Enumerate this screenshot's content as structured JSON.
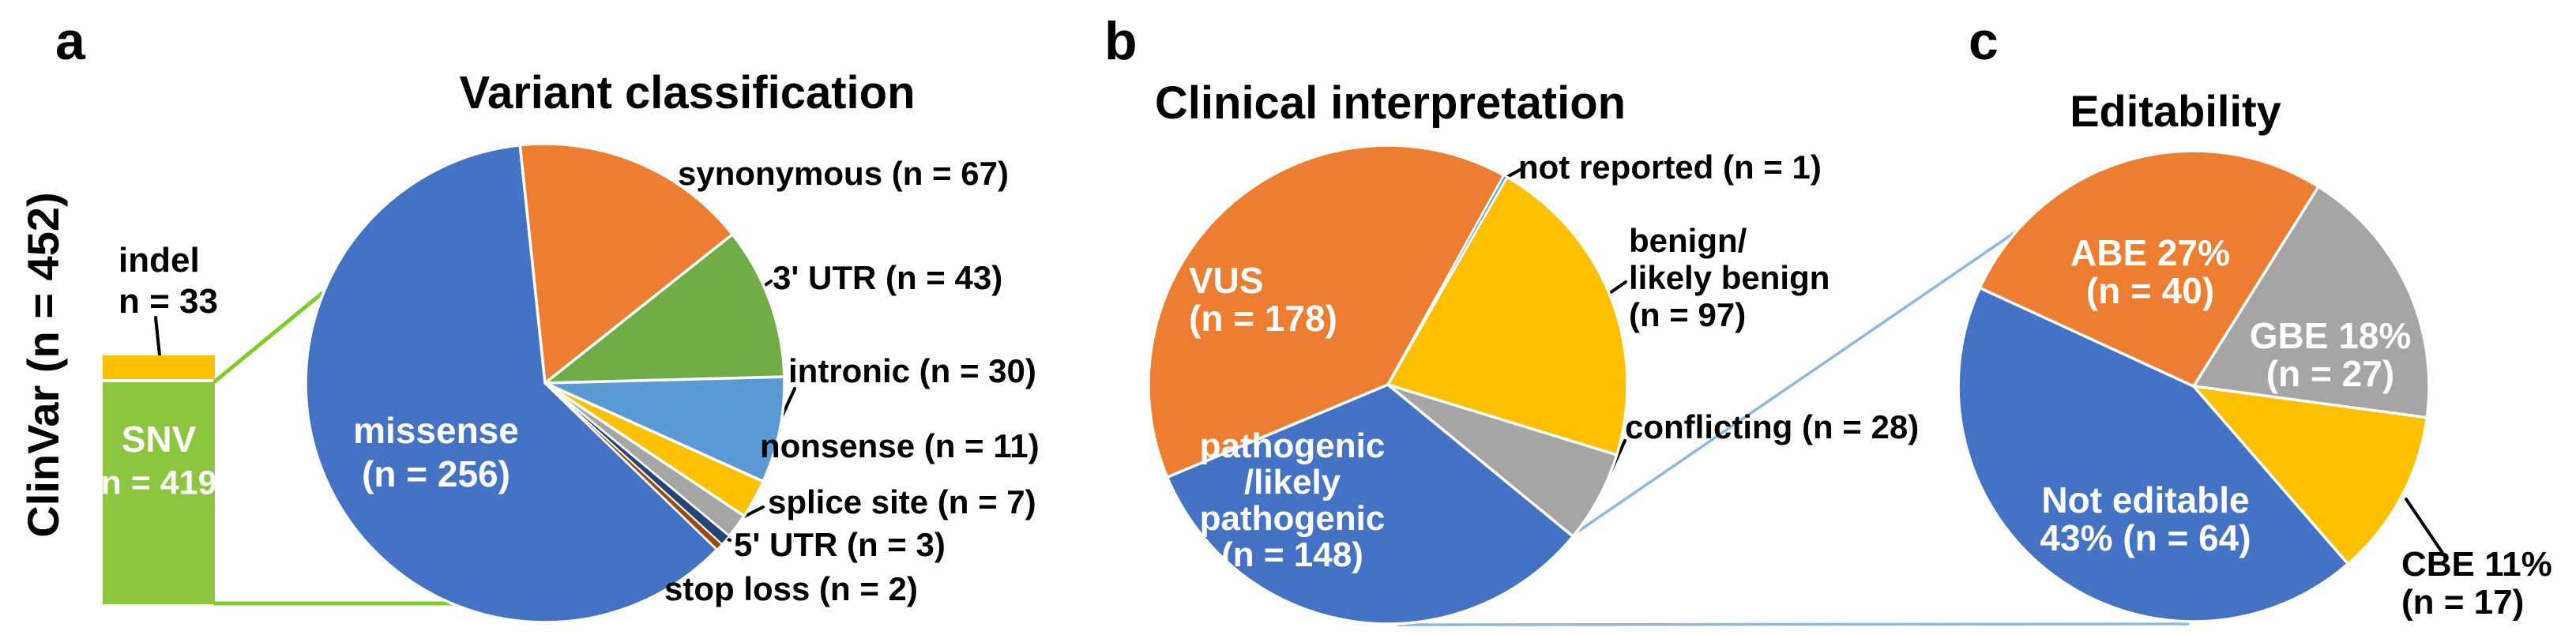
{
  "colors": {
    "blue": "#4472C4",
    "orange": "#ED7D31",
    "gray": "#A5A5A5",
    "yellow": "#FFC000",
    "light_blue": "#5B9BD5",
    "green": "#70AD47",
    "dark_blue": "#264478",
    "dark_orange": "#9E480E",
    "bar_green": "#8CC63E",
    "connector_green": "#80CC28",
    "connector_blue": "#8FB8E0",
    "text_black": "#000000",
    "text_white": "#FFFFFF",
    "background": "#FFFFFF"
  },
  "panels": {
    "a": {
      "letter": "a",
      "side_label": "ClinVar (n = 452)"
    },
    "b": {
      "letter": "b"
    },
    "c": {
      "letter": "c"
    }
  },
  "chart_data": [
    {
      "type": "bar",
      "stacked": true,
      "title": "ClinVar (n = 452)",
      "total": 452,
      "segments": [
        {
          "name": "SNV",
          "n": 419,
          "color": "#8CC63E",
          "label_lines": [
            "SNV",
            "n = 419"
          ]
        },
        {
          "name": "indel",
          "n": 33,
          "color": "#FFC000",
          "callout_lines": [
            "indel",
            "n = 33"
          ]
        }
      ]
    },
    {
      "type": "pie",
      "title": "Variant classification",
      "total": 419,
      "start_angle_deg": -6,
      "legend_position": "outside-right",
      "slices": [
        {
          "name": "synonymous",
          "n": 67,
          "color": "#ED7D31",
          "callout": "synonymous (n = 67)"
        },
        {
          "name": "three-prime-utr",
          "n": 43,
          "color": "#70AD47",
          "callout": "3' UTR (n = 43)"
        },
        {
          "name": "intronic",
          "n": 30,
          "color": "#5B9BD5",
          "callout": "intronic (n = 30)"
        },
        {
          "name": "nonsense",
          "n": 11,
          "color": "#FFC000",
          "callout": "nonsense (n = 11)"
        },
        {
          "name": "splice-site",
          "n": 7,
          "color": "#A5A5A5",
          "callout": "splice site (n = 7)"
        },
        {
          "name": "five-prime-utr",
          "n": 3,
          "color": "#264478",
          "callout": "5' UTR (n = 3)"
        },
        {
          "name": "stop-loss",
          "n": 2,
          "color": "#9E480E",
          "callout": "stop loss (n = 2)"
        },
        {
          "name": "missense",
          "n": 256,
          "color": "#4472C4",
          "label_lines": [
            "missense",
            "(n = 256)"
          ]
        }
      ]
    },
    {
      "type": "pie",
      "title": "Clinical interpretation",
      "total": 452,
      "start_angle_deg": 29,
      "slices": [
        {
          "name": "not-reported",
          "n": 1,
          "color": "#5B9BD5",
          "callout": "not reported (n = 1)"
        },
        {
          "name": "benign-likely-benign",
          "n": 97,
          "color": "#FFC000",
          "callout_lines": [
            "benign/",
            "likely benign",
            "(n = 97)"
          ]
        },
        {
          "name": "conflicting",
          "n": 28,
          "color": "#A5A5A5",
          "callout": "conflicting (n = 28)"
        },
        {
          "name": "pathogenic-likely-pathogenic",
          "n": 148,
          "color": "#4472C4",
          "label_lines": [
            "pathogenic",
            "/likely",
            "pathogenic",
            "(n = 148)"
          ]
        },
        {
          "name": "vus",
          "n": 178,
          "color": "#ED7D31",
          "label_lines": [
            "VUS",
            "(n = 178)"
          ]
        }
      ]
    },
    {
      "type": "pie",
      "title": "Editability",
      "total": 148,
      "start_angle_deg": 32,
      "slices": [
        {
          "name": "gbe",
          "n": 27,
          "percent": 18,
          "color": "#A5A5A5",
          "label_lines": [
            "GBE 18%",
            "(n = 27)"
          ]
        },
        {
          "name": "cbe",
          "n": 17,
          "percent": 11,
          "color": "#FFC000",
          "callout_lines": [
            "CBE 11%",
            "(n = 17)"
          ]
        },
        {
          "name": "not-editable",
          "n": 64,
          "percent": 43,
          "color": "#4472C4",
          "label_lines": [
            "Not editable",
            "43% (n = 64)"
          ]
        },
        {
          "name": "abe",
          "n": 40,
          "percent": 27,
          "color": "#ED7D31",
          "label_lines": [
            "ABE 27%",
            "(n = 40)"
          ]
        }
      ]
    }
  ]
}
